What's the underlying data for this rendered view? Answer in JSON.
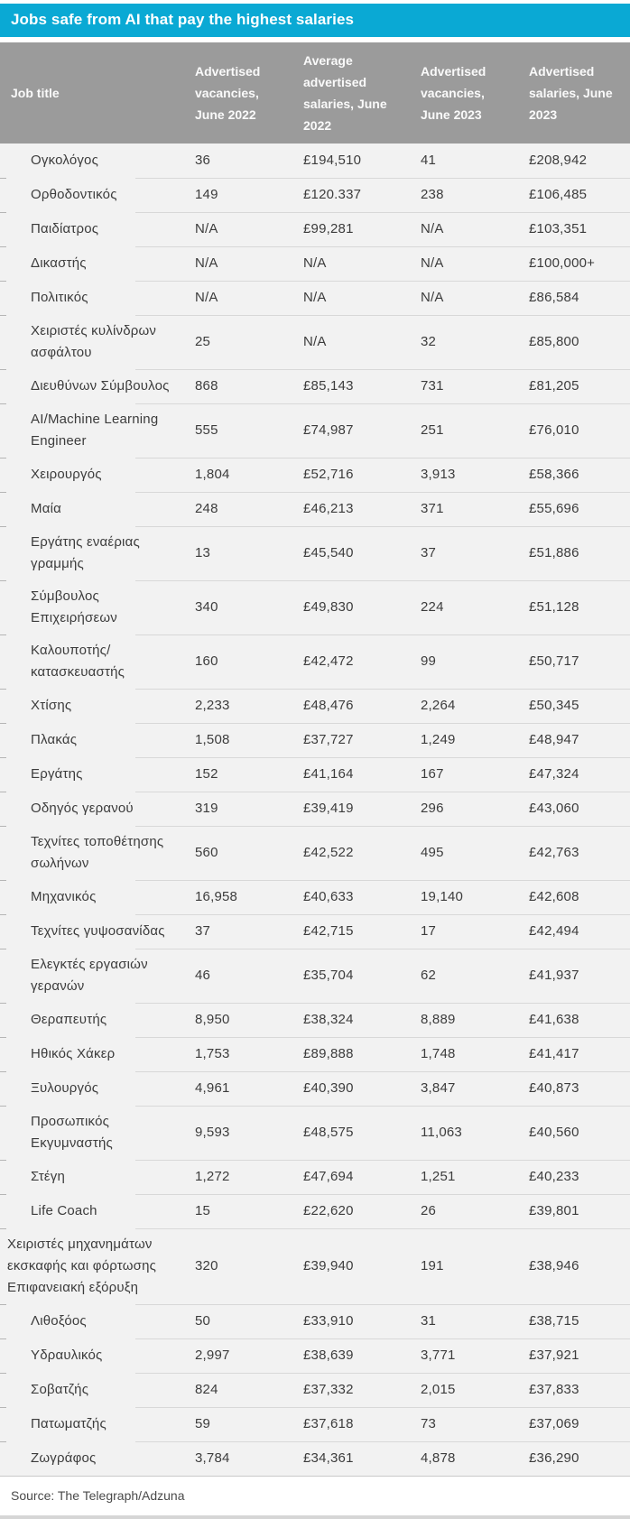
{
  "colors": {
    "accent": "#0aa9d4",
    "header_bg": "#9b9b9b",
    "header_text": "#fafafa",
    "body_bg": "#f2f2f2",
    "divider": "#d8d8d8",
    "text": "#3c3c3c"
  },
  "chart_data": {
    "type": "table",
    "title": "Jobs safe from AI that pay the highest salaries",
    "columns": [
      "Job title",
      "Advertised vacancies, June 2022",
      "Average advertised salaries, June 2022",
      "Advertised vacancies, June 2023",
      "Advertised salaries, June 2023"
    ],
    "rows": [
      [
        "Ογκολόγος",
        "36",
        "£194,510",
        "41",
        "£208,942"
      ],
      [
        "Ορθοδοντικός",
        "149",
        "£120.337",
        "238",
        "£106,485"
      ],
      [
        "Παιδίατρος",
        "N/A",
        "£99,281",
        "N/A",
        "£103,351"
      ],
      [
        "Δικαστής",
        "N/A",
        "N/A",
        "N/A",
        "£100,000+"
      ],
      [
        "Πολιτικός",
        "N/A",
        "N/A",
        "N/A",
        "£86,584"
      ],
      [
        "Χειριστές κυλίνδρων ασφάλτου",
        "25",
        "N/A",
        "32",
        "£85,800"
      ],
      [
        "Διευθύνων Σύμβουλος",
        "868",
        "£85,143",
        "731",
        "£81,205"
      ],
      [
        "AI/Machine Learning Engineer",
        "555",
        "£74,987",
        "251",
        "£76,010"
      ],
      [
        "Χειρουργός",
        "1,804",
        "£52,716",
        "3,913",
        "£58,366"
      ],
      [
        "Μαία",
        "248",
        "£46,213",
        "371",
        "£55,696"
      ],
      [
        "Εργάτης εναέριας γραμμής",
        "13",
        "£45,540",
        "37",
        "£51,886"
      ],
      [
        "Σύμβουλος Επιχειρήσεων",
        "340",
        "£49,830",
        "224",
        "£51,128"
      ],
      [
        "Καλουποτής/κατασκευαστής",
        "160",
        "£42,472",
        "99",
        "£50,717"
      ],
      [
        "Χτίσης",
        "2,233",
        "£48,476",
        "2,264",
        "£50,345"
      ],
      [
        "Πλακάς",
        "1,508",
        "£37,727",
        "1,249",
        "£48,947"
      ],
      [
        "Εργάτης",
        "152",
        "£41,164",
        "167",
        "£47,324"
      ],
      [
        "Οδηγός γερανού",
        "319",
        "£39,419",
        "296",
        "£43,060"
      ],
      [
        "Τεχνίτες τοποθέτησης σωλήνων",
        "560",
        "£42,522",
        "495",
        "£42,763"
      ],
      [
        "Μηχανικός",
        "16,958",
        "£40,633",
        "19,140",
        "£42,608"
      ],
      [
        "Τεχνίτες γυψοσανίδας",
        "37",
        "£42,715",
        "17",
        "£42,494"
      ],
      [
        "Ελεγκτές εργασιών γερανών",
        "46",
        "£35,704",
        "62",
        "£41,937"
      ],
      [
        "Θεραπευτής",
        "8,950",
        "£38,324",
        "8,889",
        "£41,638"
      ],
      [
        "Ηθικός Χάκερ",
        "1,753",
        "£89,888",
        "1,748",
        "£41,417"
      ],
      [
        "Ξυλουργός",
        "4,961",
        "£40,390",
        "3,847",
        "£40,873"
      ],
      [
        "Προσωπικός Εκγυμναστής",
        "9,593",
        "£48,575",
        "11,063",
        "£40,560"
      ],
      [
        "Στέγη",
        "1,272",
        "£47,694",
        "1,251",
        "£40,233"
      ],
      [
        "Life Coach",
        "15",
        "£22,620",
        "26",
        "£39,801"
      ],
      [
        "Χειριστές μηχανημάτων εκσκαφής και φόρτωσης Επιφανειακή εξόρυξη",
        "320",
        "£39,940",
        "191",
        "£38,946"
      ],
      [
        "Λιθοξόος",
        "50",
        "£33,910",
        "31",
        "£38,715"
      ],
      [
        "Υδραυλικός",
        "2,997",
        "£38,639",
        "3,771",
        "£37,921"
      ],
      [
        "Σοβατζής",
        "824",
        "£37,332",
        "2,015",
        "£37,833"
      ],
      [
        "Πατωματζής",
        "59",
        "£37,618",
        "73",
        "£37,069"
      ],
      [
        "Ζωγράφος",
        "3,784",
        "£34,361",
        "4,878",
        "£36,290"
      ]
    ],
    "source": "Source: The Telegraph/Adzuna",
    "layout": {
      "legend": "none",
      "grid": "row-dividers",
      "header_style": "gray-band",
      "title_style": "cyan-band"
    }
  }
}
